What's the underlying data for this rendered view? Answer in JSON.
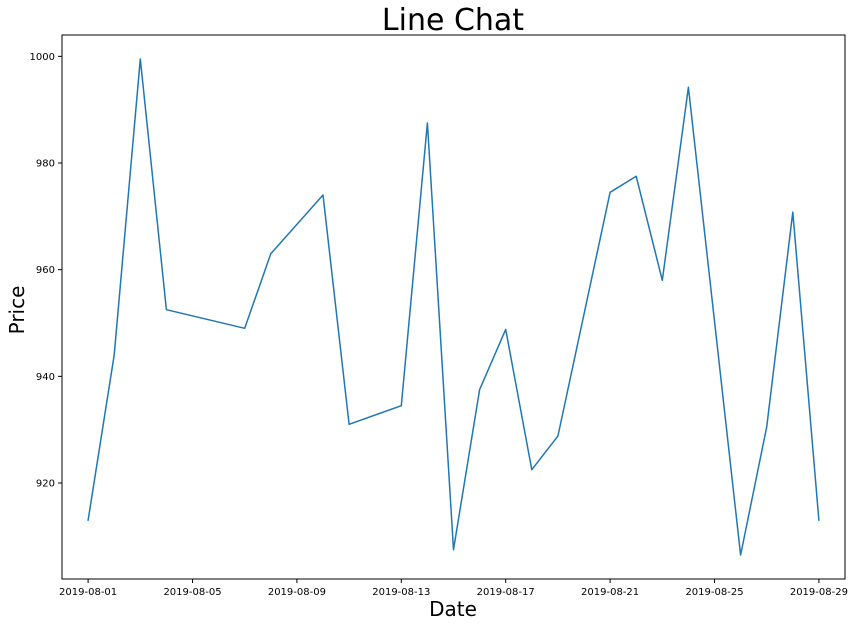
{
  "chart_data": {
    "type": "line",
    "title": "Line Chat",
    "xlabel": "Date",
    "ylabel": "Price",
    "x": [
      "2019-08-01",
      "2019-08-02",
      "2019-08-03",
      "2019-08-04",
      "2019-08-07",
      "2019-08-08",
      "2019-08-10",
      "2019-08-11",
      "2019-08-13",
      "2019-08-14",
      "2019-08-15",
      "2019-08-16",
      "2019-08-17",
      "2019-08-18",
      "2019-08-19",
      "2019-08-21",
      "2019-08-22",
      "2019-08-23",
      "2019-08-24",
      "2019-08-26",
      "2019-08-27",
      "2019-08-28",
      "2019-08-29"
    ],
    "series": [
      {
        "color": "#1f77b4",
        "values": [
          913,
          944,
          999.5,
          952.5,
          949,
          963,
          974,
          931,
          934.5,
          987.5,
          907.5,
          937.5,
          948.8,
          922.5,
          928.8,
          974.5,
          977.5,
          958,
          994.2,
          906.5,
          930.5,
          970.8,
          913
        ]
      }
    ],
    "xlim": [
      "2019-07-31",
      "2019-08-30"
    ],
    "xticks": [
      "2019-08-01",
      "2019-08-05",
      "2019-08-09",
      "2019-08-13",
      "2019-08-17",
      "2019-08-21",
      "2019-08-25",
      "2019-08-29"
    ],
    "ylim": [
      902,
      1004
    ],
    "yticks": [
      920,
      940,
      960,
      980,
      1000
    ],
    "ytick_labels": [
      "920",
      "940",
      "960",
      "980",
      "1000"
    ],
    "grid": false,
    "legend": "none"
  }
}
